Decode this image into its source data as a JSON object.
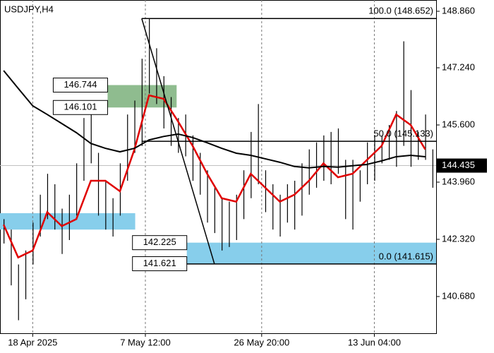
{
  "chart_data": {
    "type": "ohlc",
    "title": "USDJPY,H4",
    "xlim": [
      -0.5,
      59.5
    ],
    "xticks": [
      {
        "value": 4,
        "label": "18 Apr 2025"
      },
      {
        "value": 19.5,
        "label": "7 May 12:00"
      },
      {
        "value": 35.5,
        "label": "26 May 20:00"
      },
      {
        "value": 51,
        "label": "13 Jun 04:00"
      }
    ],
    "ylim": [
      139.627,
      149.184
    ],
    "yticks": [
      {
        "value": 148.86,
        "label": "148.860"
      },
      {
        "value": 147.24,
        "label": "147.240"
      },
      {
        "value": 145.6,
        "label": "145.600"
      },
      {
        "value": 143.96,
        "label": "143.960"
      },
      {
        "value": 142.32,
        "label": "142.320"
      },
      {
        "value": 140.68,
        "label": "140.680"
      }
    ],
    "grid": true,
    "bar_color": "#000000",
    "high": [
      142.9,
      142.6,
      141.6,
      142.0,
      142.8,
      143.6,
      144.2,
      143.9,
      143.2,
      143.6,
      144.5,
      145.8,
      146.1,
      144.8,
      144.0,
      143.5,
      144.5,
      145.9,
      146.3,
      147.5,
      148.65,
      147.8,
      147.0,
      146.4,
      145.8,
      145.9,
      145.3,
      144.8,
      144.3,
      143.8,
      143.5,
      143.4,
      143.6,
      144.3,
      145.4,
      146.2,
      144.3,
      143.9,
      143.6,
      143.9,
      144.0,
      144.5,
      144.9,
      145.1,
      145.3,
      145.4,
      145.5,
      144.6,
      144.6,
      144.3,
      145.1,
      145.3,
      145.3,
      145.6,
      146.0,
      148.0,
      146.6,
      145.4,
      145.9,
      144.9
    ],
    "low": [
      142.2,
      141.0,
      140.0,
      140.6,
      141.6,
      142.4,
      142.9,
      142.6,
      141.9,
      142.3,
      143.0,
      144.0,
      144.5,
      143.0,
      142.6,
      142.4,
      143.0,
      144.0,
      144.8,
      145.0,
      146.5,
      146.2,
      145.5,
      145.0,
      144.8,
      144.7,
      144.0,
      143.6,
      142.8,
      142.5,
      142.0,
      142.1,
      142.3,
      142.9,
      143.5,
      143.9,
      143.1,
      142.6,
      142.4,
      142.8,
      142.6,
      143.0,
      143.6,
      143.8,
      144.0,
      143.9,
      144.2,
      142.9,
      142.6,
      143.4,
      143.9,
      144.0,
      144.5,
      144.6,
      144.4,
      145.0,
      144.4,
      144.6,
      144.6,
      143.8
    ],
    "series": [
      {
        "color": "#e00000",
        "x": [
          0,
          2,
          4,
          6,
          8,
          10,
          12,
          14,
          16,
          18,
          20,
          22,
          24,
          26,
          28,
          30,
          32,
          34,
          36,
          38,
          40,
          42,
          44,
          46,
          48,
          50,
          52,
          54,
          56,
          58
        ],
        "values": [
          142.74,
          141.8,
          142.0,
          143.1,
          142.7,
          142.9,
          144.0,
          144.0,
          143.7,
          144.9,
          146.45,
          146.35,
          145.7,
          145.0,
          144.2,
          143.5,
          143.4,
          144.2,
          143.8,
          143.4,
          143.6,
          144.0,
          144.5,
          144.1,
          144.2,
          144.6,
          145.0,
          145.9,
          145.6,
          144.9
        ]
      },
      {
        "color": "#000000",
        "x": [
          0,
          2,
          4,
          6,
          8,
          10,
          12,
          14,
          16,
          18,
          20,
          22,
          24,
          26,
          28,
          30,
          32,
          34,
          36,
          38,
          40,
          42,
          44,
          46,
          48,
          50,
          52,
          54,
          56,
          58
        ],
        "values": [
          147.16,
          146.65,
          146.15,
          145.9,
          145.64,
          145.38,
          145.07,
          144.93,
          144.83,
          144.93,
          145.17,
          145.27,
          145.34,
          145.24,
          145.09,
          144.93,
          144.79,
          144.73,
          144.63,
          144.53,
          144.41,
          144.37,
          144.41,
          144.39,
          144.43,
          144.47,
          144.57,
          144.69,
          144.73,
          144.69
        ]
      }
    ],
    "fibonacci": {
      "color": "#000000",
      "from_x": 19,
      "to_x": 29,
      "levels": [
        {
          "label": "100.0 (148.652)",
          "value": 148.652
        },
        {
          "label": "50.0 (145.133)",
          "value": 145.133
        },
        {
          "label": "0.0 (141.615)",
          "value": 141.615
        }
      ]
    },
    "zones": [
      {
        "color": "#8fbc8f",
        "x": [
          14.3,
          23.8
        ],
        "high": 146.744,
        "low": 146.101,
        "labeled": true
      },
      {
        "color": "#87ceeb",
        "x": [
          -0.5,
          18.1
        ],
        "high": 143.07,
        "low": 142.6,
        "labeled": false
      },
      {
        "color": "#87ceeb",
        "x": [
          25.2,
          59.5
        ],
        "high": 142.225,
        "low": 141.621,
        "labeled": true
      }
    ],
    "last_price": 144.435
  }
}
